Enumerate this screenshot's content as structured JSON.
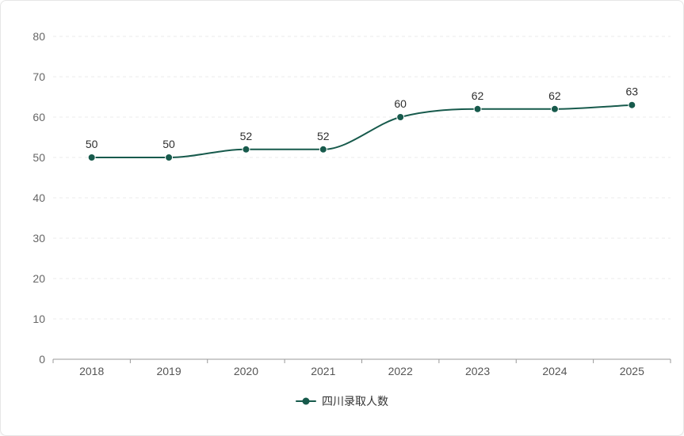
{
  "chart_data": {
    "type": "line",
    "title": "",
    "categories": [
      "2018",
      "2019",
      "2020",
      "2021",
      "2022",
      "2023",
      "2024",
      "2025"
    ],
    "values": [
      50,
      50,
      52,
      52,
      60,
      62,
      62,
      63
    ],
    "series": [
      {
        "name": "四川录取人数",
        "values": [
          50,
          50,
          52,
          52,
          60,
          62,
          62,
          63
        ]
      }
    ],
    "series_name": "四川录取人数",
    "xlabel": "",
    "ylabel": "",
    "ylim": [
      0,
      80
    ],
    "yticks": [
      0,
      10,
      20,
      30,
      40,
      50,
      60,
      70,
      80
    ],
    "grid": "dashed-horizontal",
    "legend_position": "bottom-center",
    "line_color": "#175a4c",
    "marker_color": "#175a4c",
    "data_label_color": "#2f2f2f",
    "axis_tick_label_color": "#666666",
    "axis_line_color": "#999999",
    "gridline_color": "#ebebeb"
  },
  "legend": {
    "label": "四川录取人数"
  }
}
